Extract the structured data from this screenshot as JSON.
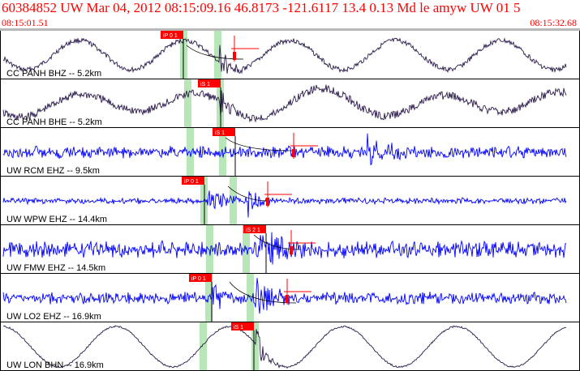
{
  "header": {
    "title": "60384852 UW Mar 04, 2012 08:15:09.16    46.8173 -121.6117 13.4 0.13 Md le amyw UW 01    5",
    "start_time": "08:15:01.51",
    "end_time": "08:15:32.68"
  },
  "colors": {
    "header_text": "#ff0000",
    "rule": "#b8b8b8",
    "trace_dark": "#2b1a4a",
    "trace_blue": "#0000ff",
    "pick_box": "#ff0000",
    "pick_window": "#b9e6b9",
    "marker": "#ff0000"
  },
  "traces": [
    {
      "label": "CC PANH BHZ -- 5.2km",
      "color": "dark",
      "pick": "iP 0 1"
    },
    {
      "label": "CC PANH BHE -- 5.2km",
      "color": "dark",
      "pick": "iS 1"
    },
    {
      "label": "UW RCM EHZ -- 9.5km",
      "color": "blue",
      "pick": "iS 1"
    },
    {
      "label": "UW WPW EHZ -- 14.4km",
      "color": "blue",
      "pick": "iP 0 1"
    },
    {
      "label": "UW FMW EHZ -- 14.5km",
      "color": "blue",
      "pick": "iS 2 1"
    },
    {
      "label": "UW LO2 EHZ -- 16.9km",
      "color": "blue",
      "pick": "iP 0 1"
    },
    {
      "label": "UW LON BHN -- 16.9km",
      "color": "dark",
      "pick": "iS 1"
    }
  ]
}
